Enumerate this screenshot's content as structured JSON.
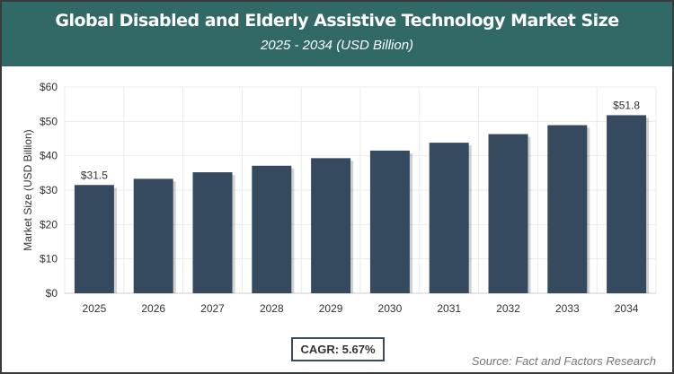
{
  "chart_data": {
    "type": "bar",
    "title": "Global Disabled and Elderly Assistive Technology Market Size",
    "subtitle": "2025 - 2034 (USD Billion)",
    "xlabel": "",
    "ylabel": "Market Size (USD Billion)",
    "categories": [
      "2025",
      "2026",
      "2027",
      "2028",
      "2029",
      "2030",
      "2031",
      "2032",
      "2033",
      "2034"
    ],
    "values": [
      31.5,
      33.3,
      35.2,
      37.1,
      39.3,
      41.5,
      43.8,
      46.3,
      48.9,
      51.8
    ],
    "data_labels": {
      "0": "$31.5",
      "9": "$51.8"
    },
    "ylim": [
      0,
      60
    ],
    "yticks": [
      "$0",
      "$10",
      "$20",
      "$30",
      "$40",
      "$50",
      "$60"
    ],
    "grid": true,
    "bar_color": "#364a5f",
    "header_color": "#316966"
  },
  "footer": {
    "cagr": "CAGR: 5.67%",
    "source": "Source: Fact and Factors Research"
  }
}
